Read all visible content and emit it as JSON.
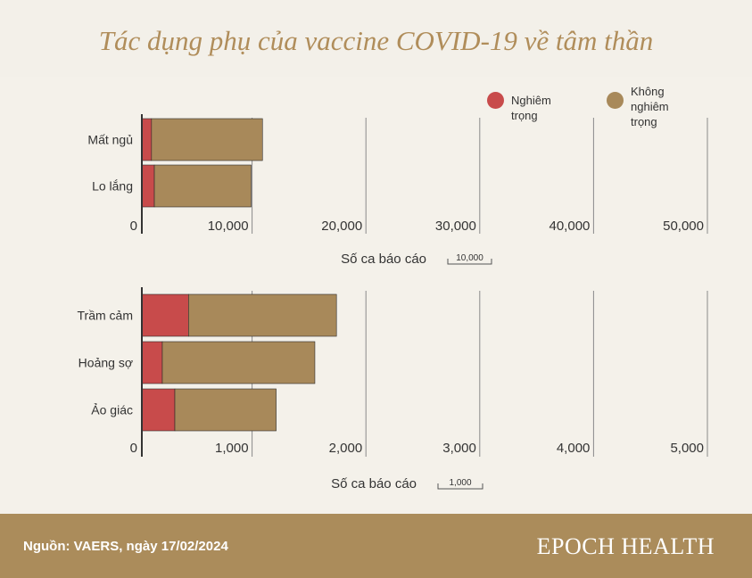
{
  "title": "Tác dụng phụ của vaccine COVID-19 về tâm thần",
  "legend": [
    {
      "label_lines": [
        "Nghiêm trọng"
      ],
      "color": "#c84b4b"
    },
    {
      "label_lines": [
        "Không",
        "nghiêm trọng"
      ],
      "color": "#a8895a"
    }
  ],
  "chart_data": [
    {
      "type": "bar",
      "orientation": "horizontal",
      "stacked": true,
      "categories": [
        "Mất ngủ",
        "Lo lắng"
      ],
      "series": [
        {
          "name": "Nghiêm trọng",
          "values": [
            850,
            1100
          ]
        },
        {
          "name": "Không nghiêm trọng",
          "values": [
            9750,
            8500
          ]
        }
      ],
      "xlabel": "Số ca báo cáo",
      "xlim": [
        0,
        50000
      ],
      "xticks": [
        0,
        10000,
        20000,
        30000,
        40000,
        50000
      ],
      "xtick_labels": [
        "0",
        "10,000",
        "20,000",
        "30,000",
        "40,000",
        "50,000"
      ],
      "scale_label": "10,000",
      "grid": true
    },
    {
      "type": "bar",
      "orientation": "horizontal",
      "stacked": true,
      "categories": [
        "Trầm cảm",
        "Hoảng sợ",
        "Ảo giác"
      ],
      "series": [
        {
          "name": "Nghiêm trọng",
          "values": [
            410,
            180,
            290
          ]
        },
        {
          "name": "Không nghiêm trọng",
          "values": [
            1300,
            1340,
            890
          ]
        }
      ],
      "xlabel": "Số ca báo cáo",
      "xlim": [
        0,
        5000
      ],
      "xticks": [
        0,
        1000,
        2000,
        3000,
        4000,
        5000
      ],
      "xtick_labels": [
        "0",
        "1,000",
        "2,000",
        "3,000",
        "4,000",
        "5,000"
      ],
      "scale_label": "1,000",
      "grid": true
    }
  ],
  "footer": {
    "source": "Nguồn: VAERS, ngày 17/02/2024",
    "brand": "EPOCH HEALTH"
  }
}
